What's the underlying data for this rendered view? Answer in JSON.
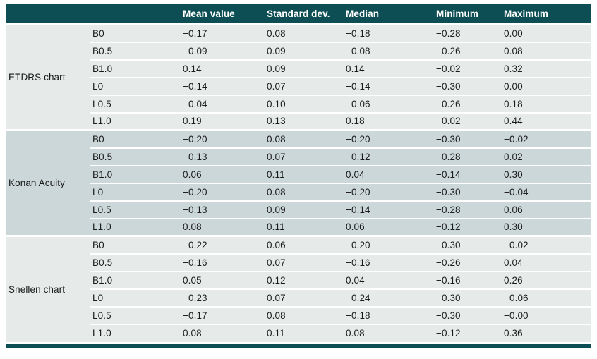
{
  "chart_data": {
    "type": "table",
    "columns": [
      "",
      "",
      "Mean value",
      "Standard dev.",
      "Median",
      "Minimum",
      "Maximum"
    ],
    "sections": [
      {
        "label": "ETDRS chart",
        "rows": [
          {
            "condition": "B0",
            "values": [
              "−0.17",
              "0.08",
              "−0.18",
              "−0.28",
              "0.00"
            ]
          },
          {
            "condition": "B0.5",
            "values": [
              "−0.09",
              "0.09",
              "−0.08",
              "−0.26",
              "0.08"
            ]
          },
          {
            "condition": "B1.0",
            "values": [
              "0.14",
              "0.09",
              "0.14",
              "−0.02",
              "0.32"
            ]
          },
          {
            "condition": "L0",
            "values": [
              "−0.14",
              "0.07",
              "−0.14",
              "−0.30",
              "0.00"
            ]
          },
          {
            "condition": "L0.5",
            "values": [
              "−0.04",
              "0.10",
              "−0.06",
              "−0.26",
              "0.18"
            ]
          },
          {
            "condition": "L1.0",
            "values": [
              "0.19",
              "0.13",
              "0.18",
              "−0.02",
              "0.44"
            ]
          }
        ]
      },
      {
        "label": "Konan Acuity",
        "rows": [
          {
            "condition": "B0",
            "values": [
              "−0.20",
              "0.08",
              "−0.20",
              "−0.30",
              "−0.02"
            ]
          },
          {
            "condition": "B0.5",
            "values": [
              "−0.13",
              "0.07",
              "−0.12",
              "−0.28",
              "0.02"
            ]
          },
          {
            "condition": "B1.0",
            "values": [
              "0.06",
              "0.11",
              "0.04",
              "−0.14",
              "0.30"
            ]
          },
          {
            "condition": "L0",
            "values": [
              "−0.20",
              "0.08",
              "−0.20",
              "−0.30",
              "−0.04"
            ]
          },
          {
            "condition": "L0.5",
            "values": [
              "−0.13",
              "0.09",
              "−0.14",
              "−0.28",
              "0.06"
            ]
          },
          {
            "condition": "L1.0",
            "values": [
              "0.08",
              "0.11",
              "0.06",
              "−0.12",
              "0.30"
            ]
          }
        ]
      },
      {
        "label": "Snellen chart",
        "rows": [
          {
            "condition": "B0",
            "values": [
              "−0.22",
              "0.06",
              "−0.20",
              "−0.30",
              "−0.02"
            ]
          },
          {
            "condition": "B0.5",
            "values": [
              "−0.16",
              "0.07",
              "−0.16",
              "−0.26",
              "0.04"
            ]
          },
          {
            "condition": "B1.0",
            "values": [
              "0.05",
              "0.12",
              "0.04",
              "−0.16",
              "0.26"
            ]
          },
          {
            "condition": "L0",
            "values": [
              "−0.23",
              "0.07",
              "−0.24",
              "−0.30",
              "−0.06"
            ]
          },
          {
            "condition": "L0.5",
            "values": [
              "−0.17",
              "0.08",
              "−0.18",
              "−0.30",
              "−0.00"
            ]
          },
          {
            "condition": "L1.0",
            "values": [
              "0.08",
              "0.11",
              "0.08",
              "−0.12",
              "0.36"
            ]
          }
        ]
      }
    ]
  },
  "colors": {
    "header_bg": "#0d4e55",
    "header_text": "#ffffff",
    "section_bg_light": "#e6ebea",
    "section_bg_dark": "#ccd7d9",
    "body_text": "#1b1b1b",
    "separator": "#ffffff",
    "bottom_rule": "#0d4e55"
  }
}
